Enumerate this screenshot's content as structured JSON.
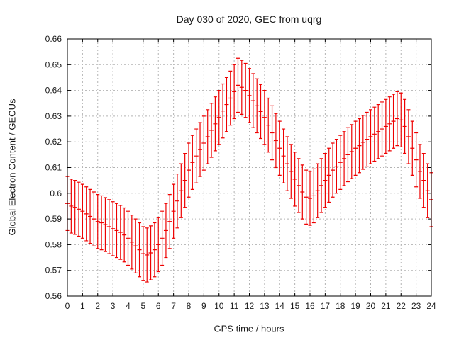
{
  "title": "Day 030 of 2020, GEC from uqrg",
  "chart_data": {
    "type": "scatter",
    "style": "yerrorbars",
    "title": "Day 030 of 2020, GEC from uqrg",
    "xlabel": "GPS time / hours",
    "ylabel": "Global Electron Content / GECUs",
    "xlim": [
      0,
      24
    ],
    "ylim": [
      0.56,
      0.66
    ],
    "xticks": [
      0,
      1,
      2,
      3,
      4,
      5,
      6,
      7,
      8,
      9,
      10,
      11,
      12,
      13,
      14,
      15,
      16,
      17,
      18,
      19,
      20,
      21,
      22,
      23,
      24
    ],
    "yticks": [
      0.56,
      0.57,
      0.58,
      0.59,
      0.6,
      0.61,
      0.62,
      0.63,
      0.64,
      0.65,
      0.66
    ],
    "grid": true,
    "legend": "none",
    "color": "#ee0000",
    "grid_color": "#b3b3b3",
    "frame_color": "#000000",
    "background": "#ffffff",
    "x_start": 0,
    "x_step": 0.25,
    "yerr": 0.0105,
    "y": [
      0.596,
      0.595,
      0.5945,
      0.5938,
      0.593,
      0.592,
      0.591,
      0.59,
      0.589,
      0.5885,
      0.5878,
      0.587,
      0.5862,
      0.5855,
      0.5848,
      0.5838,
      0.5825,
      0.581,
      0.5795,
      0.578,
      0.5765,
      0.576,
      0.5768,
      0.578,
      0.58,
      0.5825,
      0.5855,
      0.589,
      0.593,
      0.597,
      0.601,
      0.605,
      0.609,
      0.612,
      0.6145,
      0.617,
      0.6195,
      0.622,
      0.6245,
      0.627,
      0.6295,
      0.632,
      0.6345,
      0.637,
      0.6395,
      0.642,
      0.6412,
      0.64,
      0.638,
      0.636,
      0.634,
      0.6318,
      0.6295,
      0.6265,
      0.6235,
      0.6205,
      0.6175,
      0.6145,
      0.6115,
      0.6085,
      0.6055,
      0.603,
      0.6005,
      0.5985,
      0.598,
      0.599,
      0.601,
      0.603,
      0.605,
      0.607,
      0.609,
      0.6105,
      0.612,
      0.6135,
      0.615,
      0.6162,
      0.6175,
      0.6185,
      0.6198,
      0.621,
      0.622,
      0.623,
      0.624,
      0.625,
      0.626,
      0.627,
      0.628,
      0.629,
      0.6285,
      0.626,
      0.622,
      0.6175,
      0.613,
      0.6085,
      0.605,
      0.601,
      0.5975
    ]
  }
}
